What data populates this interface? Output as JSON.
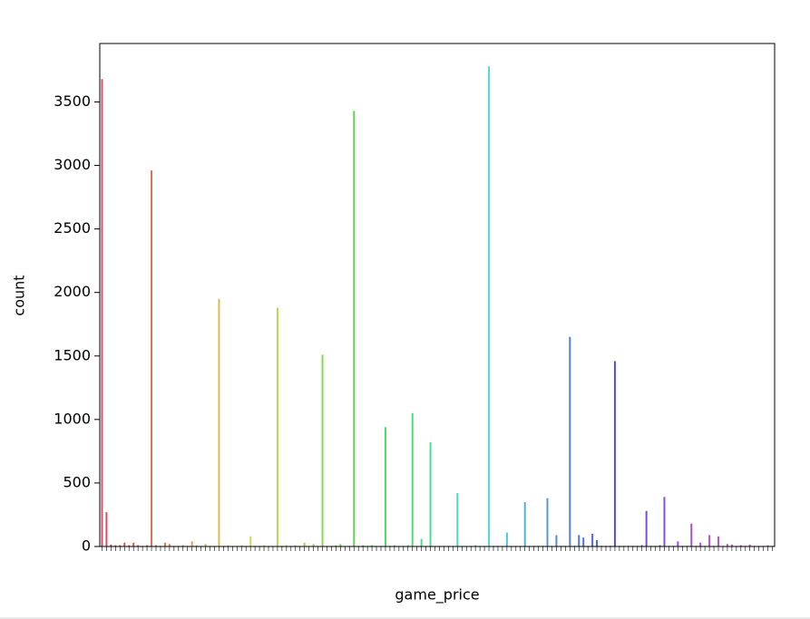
{
  "chart_data": {
    "type": "bar",
    "x_label": "game_price",
    "y_label": "count",
    "palette": "husl",
    "categories": [
      null,
      null,
      null,
      null,
      null,
      null,
      null,
      null,
      null,
      null,
      null,
      null,
      null,
      null,
      null,
      null,
      null,
      null,
      null,
      null,
      null,
      null,
      null,
      null,
      null,
      null,
      null,
      null,
      null,
      null,
      null,
      null,
      null,
      null,
      null,
      null,
      null,
      null,
      null,
      null,
      null,
      null,
      null,
      null,
      null,
      null,
      null,
      null,
      null,
      null,
      null,
      null,
      null,
      null,
      null,
      null,
      null,
      null,
      null,
      null,
      null,
      null,
      null,
      null,
      null,
      null,
      null,
      null,
      null,
      null,
      null,
      null,
      null,
      null,
      null,
      null,
      null,
      null,
      null,
      null,
      null,
      null,
      null,
      null,
      null,
      null,
      null,
      null,
      null,
      null,
      null,
      null,
      null,
      null,
      null,
      null,
      null,
      null,
      null,
      null,
      null,
      null,
      null,
      null,
      null,
      null,
      null,
      null,
      null,
      null,
      null,
      null,
      null,
      null,
      null,
      null,
      null,
      null,
      null,
      null,
      null,
      null,
      null,
      null,
      null,
      null,
      null,
      null,
      null,
      null,
      null,
      null,
      null,
      null,
      null,
      null,
      null,
      null,
      null,
      null,
      null,
      null,
      null,
      null,
      null,
      null,
      null,
      null,
      null,
      null
    ],
    "values": [
      3680,
      270,
      15,
      10,
      10,
      30,
      10,
      30,
      10,
      5,
      10,
      2960,
      10,
      5,
      30,
      20,
      5,
      5,
      10,
      5,
      40,
      10,
      5,
      20,
      5,
      5,
      1950,
      5,
      10,
      5,
      5,
      10,
      5,
      80,
      5,
      5,
      10,
      5,
      5,
      1880,
      5,
      10,
      5,
      10,
      5,
      30,
      5,
      20,
      5,
      1510,
      5,
      5,
      10,
      20,
      5,
      5,
      3430,
      5,
      10,
      5,
      10,
      5,
      5,
      940,
      5,
      10,
      5,
      5,
      10,
      1050,
      5,
      60,
      5,
      820,
      5,
      5,
      5,
      5,
      5,
      420,
      5,
      5,
      5,
      10,
      5,
      5,
      3780,
      5,
      5,
      5,
      110,
      5,
      5,
      5,
      350,
      5,
      5,
      5,
      5,
      380,
      5,
      90,
      5,
      5,
      1650,
      5,
      90,
      70,
      5,
      100,
      50,
      5,
      5,
      5,
      1460,
      5,
      5,
      5,
      5,
      5,
      10,
      280,
      5,
      5,
      10,
      390,
      5,
      5,
      40,
      5,
      5,
      180,
      5,
      30,
      5,
      90,
      5,
      80,
      5,
      20,
      15,
      5,
      10,
      5,
      15,
      5,
      5,
      5,
      10,
      5
    ],
    "ylim": [
      0,
      3960
    ],
    "yticks": [
      0,
      500,
      1000,
      1500,
      2000,
      2500,
      3000,
      3500
    ]
  }
}
